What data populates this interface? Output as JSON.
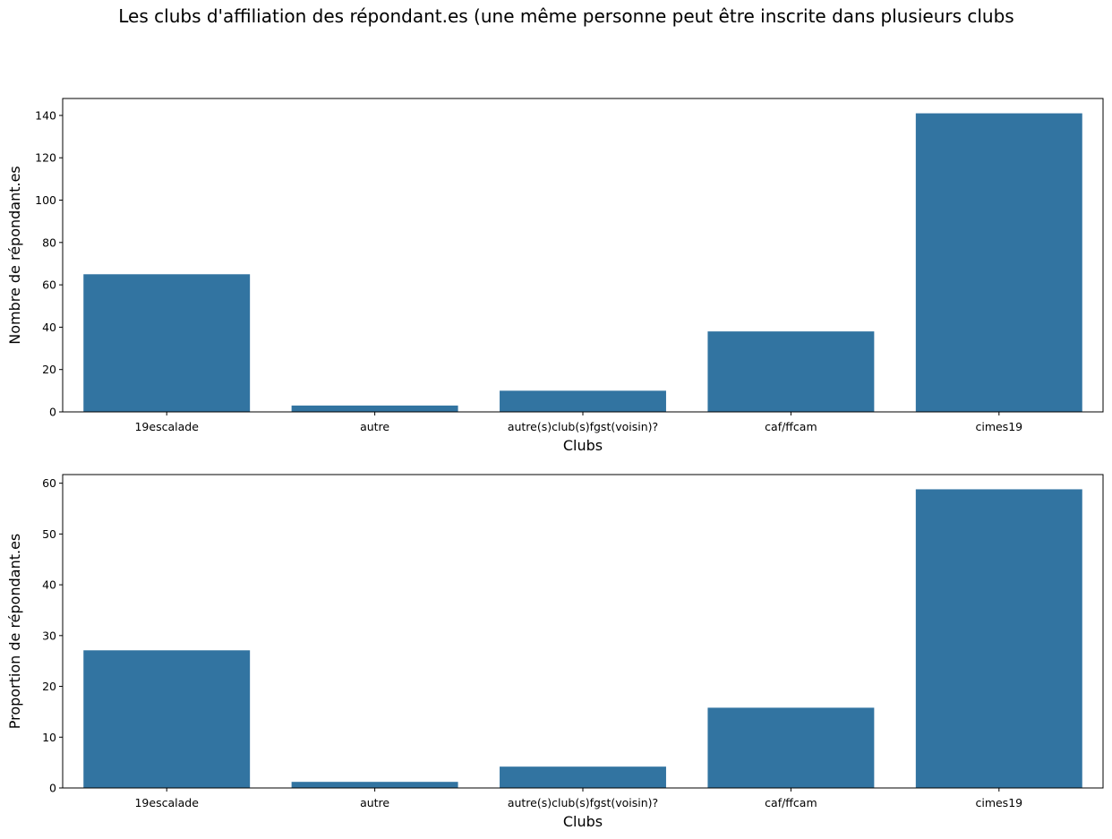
{
  "figure": {
    "title": "Les clubs d'affiliation des répondant.es (une même personne peut être inscrite dans plusieurs clubs"
  },
  "colors": {
    "bar": "#3274a1",
    "axis": "#000000"
  },
  "chart_data": [
    {
      "type": "bar",
      "title": "",
      "categories": [
        "19escalade",
        "autre",
        "autre(s)club(s)fgst(voisin)?",
        "caf/ffcam",
        "cimes19"
      ],
      "values": [
        65,
        3,
        10,
        38,
        141
      ],
      "xlabel": "Clubs",
      "ylabel": "Nombre de répondant.es",
      "ylim": [
        0,
        148
      ],
      "yticks": [
        0,
        20,
        40,
        60,
        80,
        100,
        120,
        140
      ],
      "grid": false,
      "legend": "none"
    },
    {
      "type": "bar",
      "title": "",
      "categories": [
        "19escalade",
        "autre",
        "autre(s)club(s)fgst(voisin)?",
        "caf/ffcam",
        "cimes19"
      ],
      "values": [
        27.1,
        1.2,
        4.2,
        15.8,
        58.8
      ],
      "xlabel": "Clubs",
      "ylabel": "Proportion de répondant.es",
      "ylim": [
        0,
        61.7
      ],
      "yticks": [
        0,
        10,
        20,
        30,
        40,
        50,
        60
      ],
      "grid": false,
      "legend": "none"
    }
  ]
}
